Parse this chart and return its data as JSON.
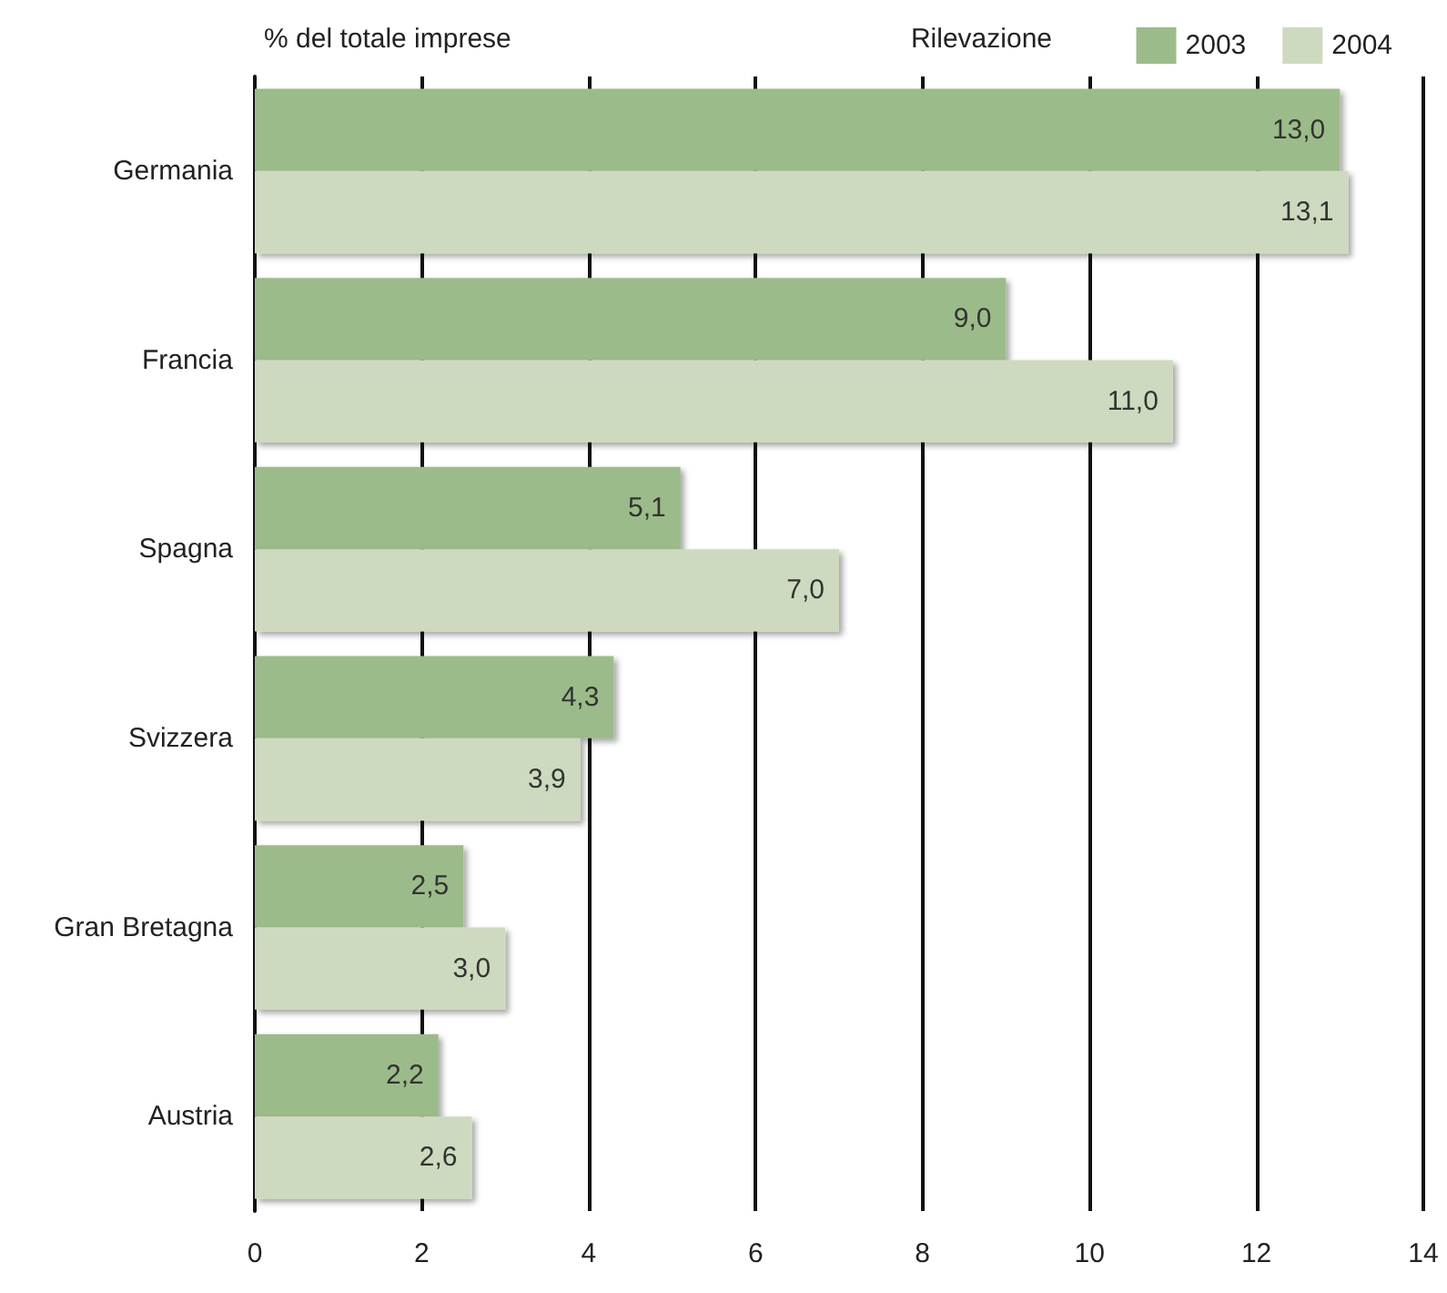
{
  "chart_data": {
    "type": "bar",
    "orientation": "horizontal",
    "title": "% del totale imprese",
    "legend_title": "Rilevazione",
    "categories": [
      "Germania",
      "Francia",
      "Spagna",
      "Svizzera",
      "Gran Bretagna",
      "Austria"
    ],
    "series": [
      {
        "name": "2003",
        "color": "#9cbb8a",
        "values": [
          13.0,
          9.0,
          5.1,
          4.3,
          2.5,
          2.2
        ],
        "value_labels": [
          "13,0",
          "9,0",
          "5,1",
          "4,3",
          "2,5",
          "2,2"
        ]
      },
      {
        "name": "2004",
        "color": "#cddabf",
        "values": [
          13.1,
          11.0,
          7.0,
          3.9,
          3.0,
          2.6
        ],
        "value_labels": [
          "13,1",
          "11,0",
          "7,0",
          "3,9",
          "3,0",
          "2,6"
        ]
      }
    ],
    "xlim": [
      0,
      14
    ],
    "xticks": [
      0,
      2,
      4,
      6,
      8,
      10,
      12,
      14
    ],
    "grid": "x",
    "legend": "top right"
  }
}
